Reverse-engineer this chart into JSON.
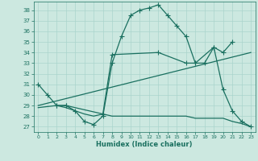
{
  "xlabel": "Humidex (Indice chaleur)",
  "bg_color": "#cce8e0",
  "grid_color": "#aad4cc",
  "line_color": "#1a7060",
  "xlim": [
    -0.5,
    23.5
  ],
  "ylim": [
    26.5,
    38.8
  ],
  "yticks": [
    27,
    28,
    29,
    30,
    31,
    32,
    33,
    34,
    35,
    36,
    37,
    38
  ],
  "xticks": [
    0,
    1,
    2,
    3,
    4,
    5,
    6,
    7,
    8,
    9,
    10,
    11,
    12,
    13,
    14,
    15,
    16,
    17,
    18,
    19,
    20,
    21,
    22,
    23
  ],
  "curve1_x": [
    0,
    1,
    2,
    3,
    4,
    5,
    6,
    7,
    8,
    9,
    10,
    11,
    12,
    13,
    14,
    15,
    16,
    17,
    18,
    19,
    20,
    21,
    22,
    23
  ],
  "curve1_y": [
    31.0,
    30.0,
    29.0,
    29.0,
    28.5,
    27.5,
    27.2,
    28.0,
    33.0,
    35.5,
    37.5,
    38.0,
    38.2,
    38.5,
    37.5,
    36.5,
    35.5,
    33.0,
    33.0,
    34.5,
    30.5,
    28.5,
    27.5,
    27.0
  ],
  "curve2_x": [
    2,
    3,
    7,
    8,
    13,
    16,
    17,
    19,
    20,
    21
  ],
  "curve2_y": [
    29.0,
    29.0,
    28.2,
    33.8,
    34.0,
    33.0,
    33.0,
    34.5,
    34.0,
    35.0
  ],
  "curve3_x": [
    0,
    2,
    3,
    4,
    5,
    6,
    7,
    8,
    9,
    10,
    11,
    12,
    13,
    14,
    15,
    16,
    17,
    18,
    19,
    20,
    21,
    22,
    23
  ],
  "curve3_y": [
    28.8,
    29.0,
    28.8,
    28.5,
    28.2,
    28.0,
    28.2,
    28.0,
    28.0,
    28.0,
    28.0,
    28.0,
    28.0,
    28.0,
    28.0,
    28.0,
    27.8,
    27.8,
    27.8,
    27.8,
    27.5,
    27.3,
    27.0
  ],
  "curve4_x": [
    0,
    23
  ],
  "curve4_y": [
    29.0,
    34.0
  ],
  "marker": "+",
  "markersize": 4,
  "linewidth": 0.9
}
